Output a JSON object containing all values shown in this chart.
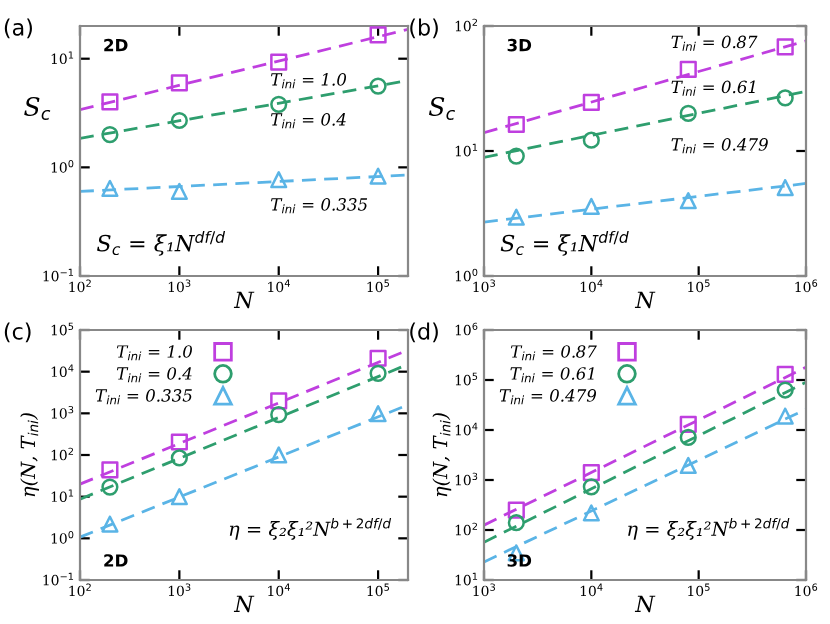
{
  "chart_data": [
    {
      "type": "scatter",
      "title": "(a)",
      "xlabel": "N",
      "ylabel": "S$_{c}$",
      "log": "xy",
      "grid": false,
      "legend": false,
      "xlim": [
        100,
        200000
      ],
      "ylim": [
        0.1,
        20
      ],
      "xticks": [
        {
          "value": 100,
          "label": "10$^{2}$"
        },
        {
          "value": 1000,
          "label": "10$^{3}$"
        },
        {
          "value": 10000,
          "label": "10$^{4}$"
        },
        {
          "value": 100000,
          "label": "10$^{5}$"
        }
      ],
      "yticks": [
        {
          "value": 0.1,
          "label": "10$^{−1}$"
        },
        {
          "value": 1,
          "label": "10$^{0}$"
        },
        {
          "value": 10,
          "label": "10$^{1}$"
        }
      ],
      "series": [
        {
          "type": "line",
          "line_style": "dashed",
          "marker": "none",
          "color": "#bf3fdf",
          "x": [
            100,
            200000
          ],
          "values": [
            3.4,
            18.6
          ]
        },
        {
          "type": "line",
          "line_style": "dashed",
          "marker": "none",
          "color": "#2e9e6e",
          "x": [
            100,
            200000
          ],
          "values": [
            1.85,
            6.3
          ]
        },
        {
          "type": "line",
          "line_style": "dashed",
          "marker": "none",
          "color": "#5ab4e6",
          "x": [
            100,
            200000
          ],
          "values": [
            0.6,
            0.85
          ]
        },
        {
          "marker": "square",
          "color": "#bf3fdf",
          "x": [
            200,
            1000,
            10000,
            100000
          ],
          "values": [
            4.0,
            6.0,
            9.3,
            16.6
          ]
        },
        {
          "marker": "circle",
          "color": "#2e9e6e",
          "x": [
            200,
            1000,
            10000,
            100000
          ],
          "values": [
            2.0,
            2.7,
            3.8,
            5.6
          ]
        },
        {
          "marker": "triangle",
          "color": "#5ab4e6",
          "x": [
            200,
            1000,
            10000,
            100000
          ],
          "values": [
            0.64,
            0.6,
            0.77,
            0.83
          ]
        }
      ],
      "annotations": [
        "T$_{ini}$ = 1.0",
        "T$_{ini}$ = 0.4",
        "T$_{ini}$ = 0.335",
        "S$_{c}$ = ξ₁N$^{df/d}$",
        "2D"
      ]
    },
    {
      "type": "scatter",
      "title": "(b)",
      "xlabel": "N",
      "ylabel": "S$_{c}$",
      "log": "xy",
      "grid": false,
      "legend": false,
      "xlim": [
        1000,
        1000000
      ],
      "ylim": [
        1,
        100
      ],
      "xticks": [
        {
          "value": 1000,
          "label": "10$^{3}$"
        },
        {
          "value": 10000,
          "label": "10$^{4}$"
        },
        {
          "value": 100000,
          "label": "10$^{5}$"
        },
        {
          "value": 1000000,
          "label": "10$^{6}$"
        }
      ],
      "yticks": [
        {
          "value": 1,
          "label": "10$^{0}$"
        },
        {
          "value": 10,
          "label": "10$^{1}$"
        },
        {
          "value": 100,
          "label": "10$^{2}$"
        }
      ],
      "series": [
        {
          "type": "line",
          "line_style": "dashed",
          "marker": "none",
          "color": "#bf3fdf",
          "x": [
            1000,
            1000000
          ],
          "values": [
            14,
            76
          ]
        },
        {
          "type": "line",
          "line_style": "dashed",
          "marker": "none",
          "color": "#2e9e6e",
          "x": [
            1000,
            1000000
          ],
          "values": [
            8.9,
            30
          ]
        },
        {
          "type": "line",
          "line_style": "dashed",
          "marker": "none",
          "color": "#5ab4e6",
          "x": [
            1000,
            1000000
          ],
          "values": [
            2.7,
            5.5
          ]
        },
        {
          "marker": "square",
          "color": "#bf3fdf",
          "x": [
            2000,
            10000,
            80000,
            640000
          ],
          "values": [
            16.3,
            24.5,
            45,
            68
          ]
        },
        {
          "marker": "circle",
          "color": "#2e9e6e",
          "x": [
            2000,
            10000,
            80000,
            640000
          ],
          "values": [
            9.1,
            12.2,
            20,
            26.6
          ]
        },
        {
          "marker": "triangle",
          "color": "#5ab4e6",
          "x": [
            2000,
            10000,
            80000,
            640000
          ],
          "values": [
            2.95,
            3.6,
            4.0,
            5.1
          ]
        }
      ],
      "annotations": [
        "T$_{ini}$ = 0.87",
        "T$_{ini}$ = 0.61",
        "T$_{ini}$ = 0.479",
        "S$_{c}$ = ξ₁N$^{df/d}$",
        "3D"
      ]
    },
    {
      "type": "scatter",
      "title": "(c)",
      "xlabel": "N",
      "ylabel": "η(N, T$_{ini}$)",
      "log": "xy",
      "grid": false,
      "legend": "top left",
      "xlim": [
        100,
        200000
      ],
      "ylim": [
        0.1,
        100000
      ],
      "xticks": [
        {
          "value": 100,
          "label": "10$^{2}$"
        },
        {
          "value": 1000,
          "label": "10$^{3}$"
        },
        {
          "value": 10000,
          "label": "10$^{4}$"
        },
        {
          "value": 100000,
          "label": "10$^{5}$"
        }
      ],
      "yticks": [
        {
          "value": 0.1,
          "label": "10$^{−1}$"
        },
        {
          "value": 1,
          "label": "10$^{0}$"
        },
        {
          "value": 10,
          "label": "10$^{1}$"
        },
        {
          "value": 100,
          "label": "10$^{2}$"
        },
        {
          "value": 1000,
          "label": "10$^{3}$"
        },
        {
          "value": 10000,
          "label": "10$^{4}$"
        },
        {
          "value": 100000,
          "label": "10$^{5}$"
        }
      ],
      "series": [
        {
          "type": "line",
          "line_style": "dashed",
          "marker": "none",
          "color": "#bf3fdf",
          "x": [
            100,
            200000
          ],
          "values": [
            20,
            33000
          ]
        },
        {
          "type": "line",
          "line_style": "dashed",
          "marker": "none",
          "color": "#2e9e6e",
          "x": [
            100,
            200000
          ],
          "values": [
            8.7,
            15000
          ]
        },
        {
          "type": "line",
          "line_style": "dashed",
          "marker": "none",
          "color": "#5ab4e6",
          "x": [
            100,
            200000
          ],
          "values": [
            1.07,
            1600
          ]
        },
        {
          "name": "T$_{ini}$ = 1.0",
          "marker": "square",
          "color": "#bf3fdf",
          "x": [
            200,
            1000,
            10000,
            100000
          ],
          "values": [
            44,
            205,
            2000,
            21000
          ]
        },
        {
          "name": "T$_{ini}$ = 0.4",
          "marker": "circle",
          "color": "#2e9e6e",
          "x": [
            200,
            1000,
            10000,
            100000
          ],
          "values": [
            17,
            85,
            930,
            9100
          ]
        },
        {
          "name": "T$_{ini}$ = 0.335",
          "marker": "triangle",
          "color": "#5ab4e6",
          "x": [
            200,
            1000,
            10000,
            100000
          ],
          "values": [
            2.2,
            10,
            100,
            980
          ]
        }
      ],
      "annotations": [
        "η = ξ₂ξ₁²N$^{b+2df/d}$",
        "2D"
      ]
    },
    {
      "type": "scatter",
      "title": "(d)",
      "xlabel": "N",
      "ylabel": "η(N, T$_{ini}$)",
      "log": "xy",
      "grid": false,
      "legend": "top left",
      "xlim": [
        1000,
        1000000
      ],
      "ylim": [
        10,
        1000000
      ],
      "xticks": [
        {
          "value": 1000,
          "label": "10$^{3}$"
        },
        {
          "value": 10000,
          "label": "10$^{4}$"
        },
        {
          "value": 100000,
          "label": "10$^{5}$"
        },
        {
          "value": 1000000,
          "label": "10$^{6}$"
        }
      ],
      "yticks": [
        {
          "value": 10,
          "label": "10$^{1}$"
        },
        {
          "value": 100,
          "label": "10$^{2}$"
        },
        {
          "value": 1000,
          "label": "10$^{3}$"
        },
        {
          "value": 10000,
          "label": "10$^{4}$"
        },
        {
          "value": 100000,
          "label": "10$^{5}$"
        },
        {
          "value": 1000000,
          "label": "10$^{6}$"
        }
      ],
      "series": [
        {
          "type": "line",
          "line_style": "dashed",
          "marker": "none",
          "color": "#bf3fdf",
          "x": [
            1000,
            1000000
          ],
          "values": [
            125,
            180000
          ]
        },
        {
          "type": "line",
          "line_style": "dashed",
          "marker": "none",
          "color": "#2e9e6e",
          "x": [
            1000,
            1000000
          ],
          "values": [
            57,
            90000
          ]
        },
        {
          "type": "line",
          "line_style": "dashed",
          "marker": "none",
          "color": "#5ab4e6",
          "x": [
            1000,
            1000000
          ],
          "values": [
            23,
            26000
          ]
        },
        {
          "name": "T$_{ini}$ = 0.87",
          "marker": "square",
          "color": "#bf3fdf",
          "x": [
            2000,
            10000,
            80000,
            640000
          ],
          "values": [
            250,
            1400,
            13000,
            130000
          ]
        },
        {
          "name": "T$_{ini}$ = 0.61",
          "marker": "circle",
          "color": "#2e9e6e",
          "x": [
            2000,
            10000,
            80000,
            640000
          ],
          "values": [
            140,
            730,
            7100,
            63000
          ]
        },
        {
          "name": "T$_{ini}$ = 0.479",
          "marker": "triangle",
          "color": "#5ab4e6",
          "x": [
            2000,
            10000,
            80000,
            640000
          ],
          "values": [
            35,
            220,
            1950,
            19000
          ]
        }
      ],
      "annotations": [
        "η = ξ₂ξ₁²N$^{b+2df/d}$",
        "3D"
      ]
    }
  ]
}
